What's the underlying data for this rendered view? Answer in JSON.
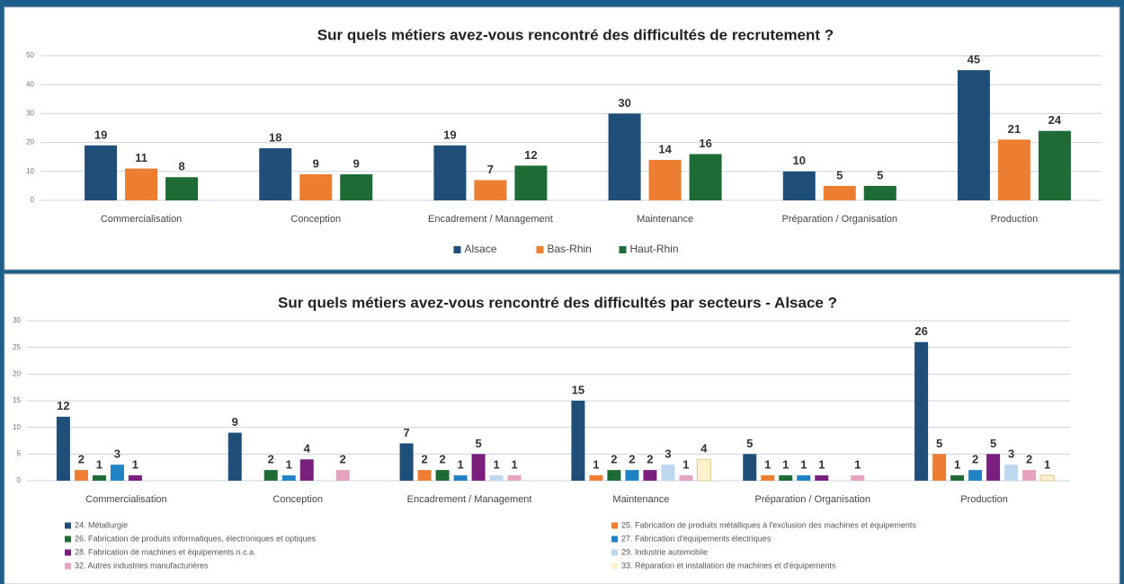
{
  "chart_data": [
    {
      "type": "bar",
      "title": "Sur quels métiers avez-vous rencontré des difficultés de recrutement ?",
      "categories": [
        "Commercialisation",
        "Conception",
        "Encadrement / Management",
        "Maintenance",
        "Préparation / Organisation",
        "Production"
      ],
      "series": [
        {
          "name": "Alsace",
          "color": "#1f4e79",
          "values": [
            19,
            18,
            19,
            30,
            10,
            45
          ]
        },
        {
          "name": "Bas-Rhin",
          "color": "#ed7d31",
          "values": [
            11,
            9,
            7,
            14,
            5,
            21
          ]
        },
        {
          "name": "Haut-Rhin",
          "color": "#1e6b35",
          "values": [
            8,
            9,
            12,
            16,
            5,
            24
          ]
        }
      ],
      "ylim": [
        0,
        50
      ],
      "yticks": [
        0,
        10,
        20,
        30,
        40,
        50
      ],
      "grid": true,
      "legend": "bottom"
    },
    {
      "type": "bar",
      "title": "Sur quels métiers avez-vous rencontré des difficultés par secteurs - Alsace ?",
      "categories": [
        "Commercialisation",
        "Conception",
        "Encadrement / Management",
        "Maintenance",
        "Préparation / Organisation",
        "Production"
      ],
      "series": [
        {
          "name": "24. Métallurgie",
          "color": "#1f4e79",
          "values": [
            12,
            9,
            7,
            15,
            5,
            26
          ]
        },
        {
          "name": "25. Fabrication de produits métalliques à l'exclusion des machines et équipements",
          "color": "#ed7d31",
          "values": [
            2,
            null,
            2,
            1,
            1,
            5
          ]
        },
        {
          "name": "26. Fabrication de produits informatiques, électroniques et optiques",
          "color": "#1e6b35",
          "values": [
            1,
            2,
            2,
            2,
            1,
            1
          ]
        },
        {
          "name": "27. Fabrication d'équipements électriques",
          "color": "#2283c4",
          "values": [
            3,
            1,
            1,
            2,
            1,
            2
          ]
        },
        {
          "name": "28. Fabrication de machines et équipements n.c.a.",
          "color": "#7b1f7e",
          "values": [
            1,
            4,
            5,
            2,
            1,
            5
          ]
        },
        {
          "name": "29. Industrie automobile",
          "color": "#bdd7ee",
          "values": [
            null,
            null,
            1,
            3,
            null,
            3
          ]
        },
        {
          "name": "32. Autres industries manufacturières",
          "color": "#e6a3c0",
          "values": [
            null,
            2,
            1,
            1,
            1,
            2
          ]
        },
        {
          "name": "33. Réparation et installation de machines et d'équipements",
          "color": "#fff2cc",
          "values": [
            null,
            null,
            null,
            4,
            null,
            1
          ]
        }
      ],
      "ylim": [
        0,
        30
      ],
      "yticks": [
        0,
        5,
        10,
        15,
        20,
        25,
        30
      ],
      "grid": true,
      "legend": "bottom"
    }
  ]
}
